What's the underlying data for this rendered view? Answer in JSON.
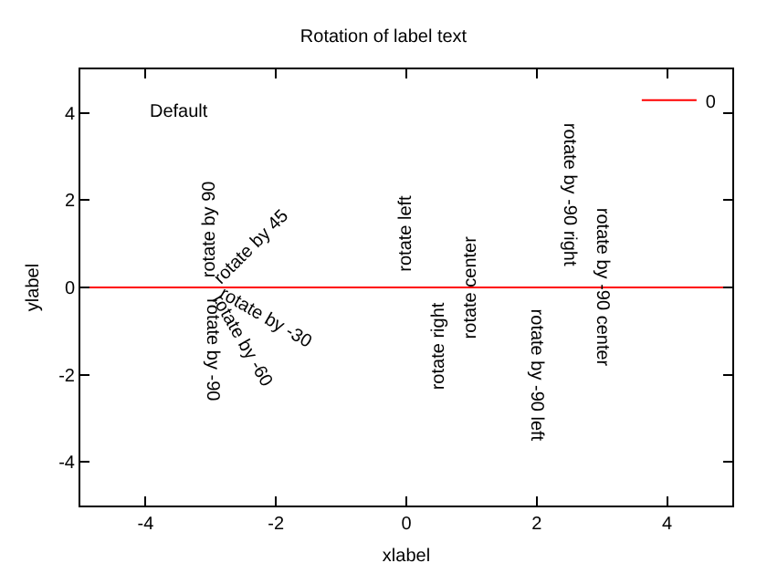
{
  "chart_data": {
    "type": "line",
    "title": "Rotation of label text",
    "xlabel": "xlabel",
    "ylabel": "ylabel",
    "x": [
      -5,
      5
    ],
    "series": [
      {
        "name": "0",
        "color": "#ff0000",
        "values": [
          0,
          0
        ]
      }
    ],
    "xlim": [
      -5,
      5
    ],
    "ylim": [
      -5,
      5
    ],
    "xticks": [
      -4,
      -2,
      0,
      2,
      4
    ],
    "yticks": [
      -4,
      -2,
      0,
      2,
      4
    ],
    "grid": false,
    "legend": "top right",
    "marker": "none",
    "line_style": "solid",
    "annotations": [
      "Default",
      {
        "text": "rotate by 45",
        "x": -3,
        "y": 0
      },
      {
        "text": "rotate by 90",
        "x": -3,
        "y": 0
      },
      {
        "text": "rotate by -30",
        "x": -3,
        "y": 0
      },
      {
        "text": "rotate by -60",
        "x": -3,
        "y": 0
      },
      {
        "text": "rotate by -90",
        "x": -3,
        "y": 0
      },
      {
        "text": "rotate left",
        "x": 0,
        "y": 0
      },
      {
        "text": "rotate right",
        "x": 0.5,
        "y": 0
      },
      {
        "text": "rotate center",
        "x": 1,
        "y": 0
      },
      {
        "text": "rotate by -90 left",
        "x": 2,
        "y": 0
      },
      {
        "text": "rotate by -90 right",
        "x": 2.5,
        "y": 0
      },
      {
        "text": "rotate by -90 center",
        "x": 3,
        "y": 0
      }
    ]
  }
}
